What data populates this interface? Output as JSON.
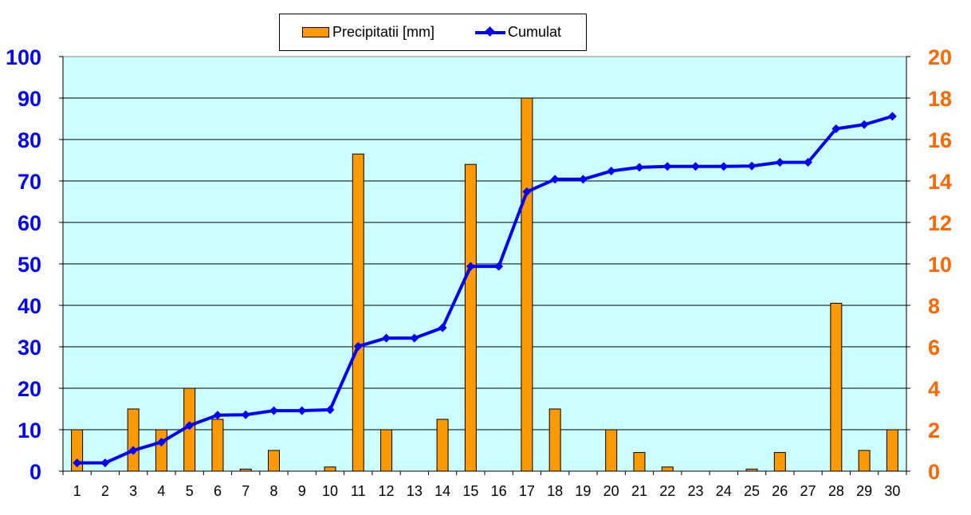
{
  "chart_data": {
    "type": "bar+line",
    "title": "",
    "xlabel": "",
    "ylabel": "",
    "categories": [
      "1",
      "2",
      "3",
      "4",
      "5",
      "6",
      "7",
      "8",
      "9",
      "10",
      "11",
      "12",
      "13",
      "14",
      "15",
      "16",
      "17",
      "18",
      "19",
      "20",
      "21",
      "22",
      "23",
      "24",
      "25",
      "26",
      "27",
      "28",
      "29",
      "30"
    ],
    "series": [
      {
        "name": "Precipitatii [mm]",
        "type": "bar",
        "axis": "right",
        "color": "#FF9900",
        "values": [
          2.0,
          0,
          3.0,
          2.0,
          4.0,
          2.5,
          0.1,
          1.0,
          0,
          0.2,
          15.3,
          2.0,
          0,
          2.5,
          14.8,
          0,
          18.0,
          3.0,
          0,
          2.0,
          0.9,
          0.2,
          0,
          0,
          0.1,
          0.9,
          0,
          8.1,
          1.0,
          2.0
        ]
      },
      {
        "name": "Cumulat",
        "type": "line",
        "axis": "left",
        "color": "#0000FF",
        "values": [
          2.0,
          2.0,
          5.0,
          7.0,
          11.0,
          13.5,
          13.6,
          14.6,
          14.6,
          14.8,
          30.1,
          32.1,
          32.1,
          34.6,
          49.4,
          49.4,
          67.4,
          70.4,
          70.4,
          72.4,
          73.3,
          73.5,
          73.5,
          73.5,
          73.6,
          74.5,
          74.5,
          82.6,
          83.6,
          85.6
        ]
      }
    ],
    "y_left": {
      "ylim": [
        0,
        100
      ],
      "ticks": [
        "0",
        "10",
        "20",
        "30",
        "40",
        "50",
        "60",
        "70",
        "80",
        "90",
        "100"
      ],
      "color": "#0000FF"
    },
    "y_right": {
      "ylim": [
        0,
        20
      ],
      "ticks": [
        "0",
        "2",
        "4",
        "6",
        "8",
        "10",
        "12",
        "14",
        "16",
        "18",
        "20"
      ],
      "color": "#FF6600"
    },
    "grid": true,
    "plot_background": "#CCFFFF",
    "legend": "top-center"
  }
}
